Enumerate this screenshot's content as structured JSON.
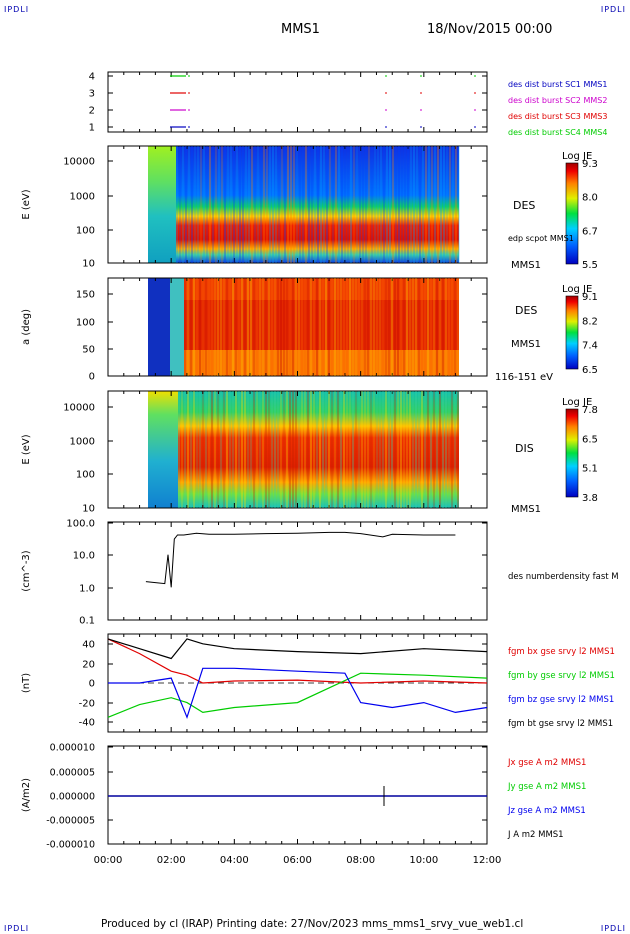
{
  "corners": {
    "tl": "IPDLI",
    "tr": "IPDLI",
    "bl": "IPDLI",
    "br": "IPDLI"
  },
  "header": {
    "spacecraft": "MMS1",
    "datetime": "18/Nov/2015 00:00"
  },
  "footer": {
    "text": "Produced by cl (IRAP)   Printing date: 27/Nov/2023   mms_mms1_srvy_vue_web1.cl"
  },
  "time_axis": {
    "ticks": [
      "00:00",
      "02:00",
      "04:00",
      "06:00",
      "08:00",
      "10:00",
      "12:00"
    ],
    "range_hours": [
      0,
      12
    ]
  },
  "colors": {
    "red": "#e00000",
    "green": "#00cc00",
    "blue": "#0000ee",
    "magenta": "#cc00cc",
    "black": "#000000",
    "label_blue": "#0000c0"
  },
  "chart_data": [
    {
      "type": "line",
      "panel": "availability",
      "yticks": [
        "4",
        "3",
        "2",
        "1"
      ],
      "legend": [
        {
          "text": "des dist burst SC1 MMS1",
          "color": "#0000c0"
        },
        {
          "text": "des dist burst SC2 MMS2",
          "color": "#cc00cc"
        },
        {
          "text": "des dist burst SC3 MMS3",
          "color": "#e00000"
        },
        {
          "text": "des dist burst SC4 MMS4",
          "color": "#00cc00"
        }
      ]
    },
    {
      "type": "heatmap",
      "panel": "des-energy",
      "ylabel": "E (eV)",
      "yscale": "log",
      "yticks": [
        "10000",
        "1000",
        "100",
        "10"
      ],
      "right_labels": [
        "DES",
        "edp scpot MMS1",
        "MMS1"
      ],
      "colorbar": {
        "title": "Log JE",
        "ticks": [
          "9.3",
          "8.0",
          "6.7",
          "5.5"
        ]
      }
    },
    {
      "type": "heatmap",
      "panel": "des-pitch",
      "ylabel": "a (deg)",
      "yticks": [
        "150",
        "100",
        "50",
        "0"
      ],
      "right_labels": [
        "DES",
        "MMS1",
        "116-151 eV"
      ],
      "colorbar": {
        "title": "Log JE",
        "ticks": [
          "9.1",
          "8.2",
          "7.4",
          "6.5"
        ]
      }
    },
    {
      "type": "heatmap",
      "panel": "dis-energy",
      "ylabel": "E (eV)",
      "yscale": "log",
      "yticks": [
        "10000",
        "1000",
        "100",
        "10"
      ],
      "right_labels": [
        "DIS",
        "MMS1"
      ],
      "colorbar": {
        "title": "Log JE",
        "ticks": [
          "7.8",
          "6.5",
          "5.1",
          "3.8"
        ]
      }
    },
    {
      "type": "line",
      "panel": "density",
      "ylabel": "(cm^-3)",
      "yscale": "log",
      "ylim": [
        0.1,
        100
      ],
      "yticks": [
        "100.0",
        "10.0",
        "1.0",
        "0.1"
      ],
      "series": [
        {
          "name": "des numberdensity fast M",
          "color": "#000000",
          "x": [
            1.2,
            1.5,
            1.8,
            1.9,
            2.0,
            2.1,
            2.2,
            2.4,
            2.8,
            3.2,
            4.0,
            5.0,
            6.0,
            7.0,
            7.5,
            8.0,
            8.7,
            9.0,
            10.0,
            11.0
          ],
          "values": [
            1.5,
            1.4,
            1.3,
            10,
            1.0,
            30,
            40,
            40,
            45,
            42,
            42,
            44,
            45,
            48,
            48,
            44,
            35,
            42,
            40,
            40
          ]
        }
      ]
    },
    {
      "type": "line",
      "panel": "fgm",
      "ylabel": "(nT)",
      "ylim": [
        -50,
        50
      ],
      "yticks": [
        "40",
        "20",
        "0",
        "-20",
        "-40"
      ],
      "series": [
        {
          "name": "fgm bx gse srvy l2 MMS1",
          "color": "#e00000",
          "x": [
            0,
            1,
            2,
            2.5,
            3,
            4,
            6,
            8,
            10,
            12
          ],
          "values": [
            45,
            30,
            12,
            8,
            0,
            2,
            3,
            0,
            2,
            0
          ]
        },
        {
          "name": "fgm by gse srvy l2 MMS1",
          "color": "#00cc00",
          "x": [
            0,
            1,
            2,
            2.5,
            3,
            4,
            6,
            8,
            10,
            12
          ],
          "values": [
            -35,
            -22,
            -15,
            -20,
            -30,
            -25,
            -20,
            10,
            8,
            5
          ]
        },
        {
          "name": "fgm bz gse srvy l2 MMS1",
          "color": "#0000ee",
          "x": [
            0,
            1,
            2,
            2.5,
            3,
            4,
            6,
            7.5,
            8,
            9,
            10,
            11,
            12
          ],
          "values": [
            0,
            0,
            5,
            -35,
            15,
            15,
            12,
            10,
            -20,
            -25,
            -20,
            -30,
            -25
          ]
        },
        {
          "name": "fgm bt gse srvy l2 MMS1",
          "color": "#000000",
          "x": [
            0,
            1,
            2,
            2.5,
            3,
            4,
            6,
            8,
            10,
            12
          ],
          "values": [
            45,
            35,
            25,
            45,
            40,
            35,
            32,
            30,
            35,
            32
          ]
        }
      ]
    },
    {
      "type": "line",
      "panel": "current",
      "ylabel": "(A/m2)",
      "ylim": [
        -1e-05,
        1e-05
      ],
      "yticks": [
        "0.000010",
        "0.000005",
        "0.000000",
        "-0.000005",
        "-0.000010"
      ],
      "series": [
        {
          "name": "Jx gse A m2 MMS1",
          "color": "#e00000"
        },
        {
          "name": "Jy gse A m2 MMS1",
          "color": "#00cc00"
        },
        {
          "name": "Jz gse A m2 MMS1",
          "color": "#0000ee"
        },
        {
          "name": "J A m2 MMS1",
          "color": "#000000"
        }
      ]
    }
  ]
}
